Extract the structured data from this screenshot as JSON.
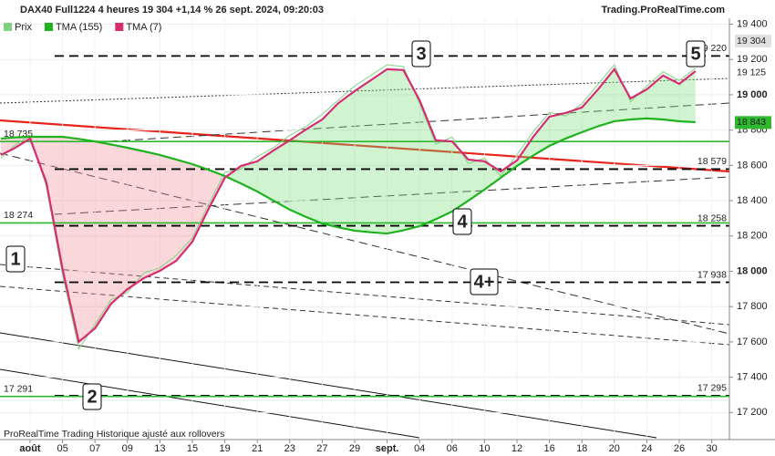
{
  "chart_data": {
    "type": "line",
    "title": "DAX40 Full1224 4 heures 19 304 +1,14 % 26 sept. 2024, 09:20:03",
    "source": "Trading.ProRealTime.com",
    "footer": "ProRealTime Trading Historique ajusté aux rollovers",
    "x": [
      -0.9,
      -0.5,
      0,
      0.5,
      1,
      1.5,
      2,
      2.5,
      3,
      3.5,
      4,
      4.5,
      5,
      5.5,
      6,
      6.5,
      7,
      7.5,
      8,
      8.5,
      9,
      9.5,
      10,
      10.5,
      11,
      11.5,
      12,
      12.5,
      13,
      13.5,
      14,
      14.5,
      15,
      15.5,
      16,
      16.5,
      17,
      17.5,
      18,
      18.5,
      19,
      19.5,
      20,
      20.5
    ],
    "series": [
      {
        "name": "Prix",
        "color": "#7fd37f",
        "values": [
          18640,
          18710,
          18770,
          18480,
          17980,
          17560,
          17700,
          17840,
          17880,
          17990,
          18020,
          18090,
          18190,
          18380,
          18560,
          18580,
          18650,
          18700,
          18770,
          18820,
          18890,
          18970,
          19050,
          19110,
          19170,
          19160,
          18950,
          18720,
          18760,
          18610,
          18640,
          18540,
          18660,
          18790,
          18900,
          18880,
          18950,
          19060,
          19170,
          18960,
          19050,
          19130,
          19080,
          19150
        ]
      },
      {
        "name": "TMA (155)",
        "color": "#1fb21f",
        "values": [
          18752,
          18758,
          18762,
          18762,
          18762,
          18750,
          18736,
          18718,
          18700,
          18680,
          18659,
          18633,
          18607,
          18575,
          18540,
          18497,
          18452,
          18400,
          18349,
          18308,
          18271,
          18249,
          18230,
          18221,
          18214,
          18232,
          18256,
          18295,
          18339,
          18400,
          18463,
          18530,
          18597,
          18656,
          18711,
          18752,
          18788,
          18822,
          18850,
          18860,
          18866,
          18860,
          18850,
          18845
        ]
      },
      {
        "name": "TMA (7)",
        "color": "#d62d72",
        "values": [
          18659,
          18695,
          18752,
          18504,
          18013,
          17600,
          17677,
          17817,
          17899,
          17961,
          18003,
          18059,
          18168,
          18354,
          18530,
          18597,
          18623,
          18685,
          18742,
          18804,
          18860,
          18953,
          19021,
          19083,
          19145,
          19140,
          18969,
          18742,
          18736,
          18633,
          18623,
          18566,
          18628,
          18762,
          18876,
          18897,
          18928,
          19031,
          19145,
          18979,
          19031,
          19109,
          19062,
          19134
        ]
      }
    ],
    "xlim": [
      -0.927,
      21.545
    ],
    "xticks": [
      {
        "value": 0,
        "label": "août"
      },
      {
        "value": 1,
        "label": "05"
      },
      {
        "value": 2,
        "label": "07"
      },
      {
        "value": 3,
        "label": "09"
      },
      {
        "value": 4,
        "label": "13"
      },
      {
        "value": 5,
        "label": "15"
      },
      {
        "value": 6,
        "label": "19"
      },
      {
        "value": 7,
        "label": "21"
      },
      {
        "value": 8,
        "label": "23"
      },
      {
        "value": 9,
        "label": "27"
      },
      {
        "value": 10,
        "label": "29"
      },
      {
        "value": 11,
        "label": "sept."
      },
      {
        "value": 12,
        "label": "04"
      },
      {
        "value": 13,
        "label": "06"
      },
      {
        "value": 14,
        "label": "10"
      },
      {
        "value": 15,
        "label": "12"
      },
      {
        "value": 16,
        "label": "16"
      },
      {
        "value": 17,
        "label": "18"
      },
      {
        "value": 18,
        "label": "20"
      },
      {
        "value": 19,
        "label": "24"
      },
      {
        "value": 20,
        "label": "26"
      },
      {
        "value": 21,
        "label": "30"
      }
    ],
    "ylim": [
      17057,
      19537
    ],
    "yticks": [
      {
        "value": 17200,
        "label": "17 200"
      },
      {
        "value": 17400,
        "label": "17 400"
      },
      {
        "value": 17600,
        "label": "17 600"
      },
      {
        "value": 17800,
        "label": "17 800"
      },
      {
        "value": 18000,
        "label": "18 000"
      },
      {
        "value": 18200,
        "label": "18 200"
      },
      {
        "value": 18400,
        "label": "18 400"
      },
      {
        "value": 18600,
        "label": "18 600"
      },
      {
        "value": 18800,
        "label": "18 800"
      },
      {
        "value": 19000,
        "label": "19 000"
      },
      {
        "value": 19200,
        "label": "19 200"
      },
      {
        "value": 19400,
        "label": "19 400"
      }
    ],
    "levels": [
      {
        "value": 19220,
        "label": "19 220",
        "style": "dashed",
        "color": "#000000"
      },
      {
        "value": 18579,
        "label": "18 579",
        "style": "dashed",
        "color": "#000000"
      },
      {
        "value": 18258,
        "label": "18 258",
        "style": "dashed",
        "color": "#000000"
      },
      {
        "value": 17938,
        "label": "17 938",
        "style": "dashed",
        "color": "#000000"
      },
      {
        "value": 17295,
        "label": "17 295",
        "style": "dashed",
        "color": "#000000"
      },
      {
        "value": 18735,
        "label": "18 735",
        "style": "solid",
        "color": "#2db82d"
      },
      {
        "value": 18274,
        "label": "18 274",
        "style": "solid",
        "color": "#2db82d"
      },
      {
        "value": 17291,
        "label": "17 291",
        "style": "solid",
        "color": "#2db82d"
      }
    ],
    "price_tags": [
      {
        "value": 19304,
        "label": "19 304",
        "color": "#e0e0e0",
        "text_color": "#000000"
      },
      {
        "value": 19125,
        "label": "19 125",
        "color": "#ffffff",
        "text_color": "#d62d72"
      },
      {
        "value": 18843,
        "label": "18 843",
        "color": "#2db82d",
        "text_color": "#ffffff"
      }
    ],
    "waves": [
      "1",
      "2",
      "3",
      "4",
      "4+",
      "5"
    ]
  }
}
